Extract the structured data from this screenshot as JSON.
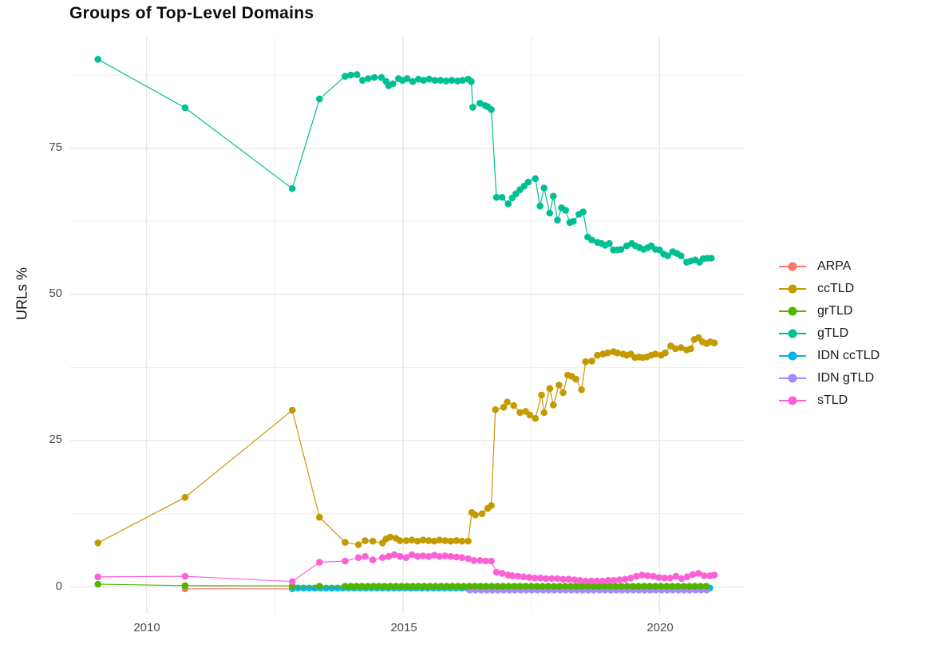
{
  "chart_data": {
    "type": "line",
    "title": "Groups of Top-Level Domains",
    "xlabel": "",
    "ylabel": "URLs %",
    "legend_position": "right",
    "grid": true,
    "xlim": [
      2008.51,
      2021.66
    ],
    "ylim": [
      -4.6,
      94.2
    ],
    "x_axis": {
      "ticks": [
        2010,
        2015,
        2020
      ],
      "tick_labels": [
        "2010",
        "2015",
        "2020"
      ],
      "minor": [
        2012.5,
        2017.5
      ]
    },
    "y_axis": {
      "ticks": [
        0,
        25,
        50,
        75
      ],
      "tick_labels": [
        "0",
        "25",
        "50",
        "75"
      ],
      "minor": [
        12.5,
        37.5,
        62.5,
        87.5
      ]
    },
    "legend": {
      "items": [
        {
          "label": "ARPA",
          "color": "#F8766D"
        },
        {
          "label": "ccTLD",
          "color": "#C49A00"
        },
        {
          "label": "grTLD",
          "color": "#53B400"
        },
        {
          "label": "gTLD",
          "color": "#00BF92"
        },
        {
          "label": "IDN ccTLD",
          "color": "#00B6EB"
        },
        {
          "label": "IDN gTLD",
          "color": "#A58AFF"
        },
        {
          "label": "sTLD",
          "color": "#FB61D7"
        }
      ]
    },
    "series": [
      {
        "id": "arpa",
        "name": "ARPA",
        "color": "#F8766D",
        "render_dy": 2.5,
        "points": [
          [
            2010.75,
            0.0
          ],
          [
            2012.84,
            0.0
          ]
        ]
      },
      {
        "id": "idn-cctld",
        "name": "IDN ccTLD",
        "color": "#00B6EB",
        "render_dy": 1.5,
        "points": [],
        "flat": {
          "from": 2012.84,
          "to": 2021.01,
          "step": 0.11,
          "value": 0.0
        }
      },
      {
        "id": "idn-gtld",
        "name": "IDN gTLD",
        "color": "#A58AFF",
        "render_dy": 4,
        "points": [],
        "flat": {
          "from": 2016.3,
          "to": 2021.01,
          "step": 0.11,
          "value": 0.0
        }
      },
      {
        "id": "grtld",
        "name": "grTLD",
        "color": "#53B400",
        "render_dy": 0,
        "points": [
          [
            2009.05,
            0.45
          ],
          [
            2010.75,
            0.2
          ],
          [
            2012.84,
            0.15
          ],
          [
            2013.37,
            0.1
          ]
        ],
        "flat": {
          "from": 2013.87,
          "to": 2021.01,
          "step": 0.11,
          "value": 0.1
        }
      },
      {
        "id": "cctld",
        "name": "ccTLD",
        "color": "#C49A00",
        "render_dy": 0,
        "points": [
          [
            2009.05,
            7.5
          ],
          [
            2010.75,
            15.3
          ],
          [
            2012.84,
            30.2
          ],
          [
            2013.37,
            11.9
          ],
          [
            2013.87,
            7.6
          ],
          [
            2014.13,
            7.2
          ],
          [
            2014.26,
            7.9
          ],
          [
            2014.41,
            7.8
          ],
          [
            2014.6,
            7.5
          ],
          [
            2014.67,
            8.2
          ],
          [
            2014.75,
            8.5
          ],
          [
            2014.86,
            8.3
          ],
          [
            2014.94,
            7.9
          ],
          [
            2015.06,
            7.9
          ],
          [
            2015.17,
            8.0
          ],
          [
            2015.28,
            7.8
          ],
          [
            2015.39,
            8.0
          ],
          [
            2015.5,
            7.9
          ],
          [
            2015.61,
            7.8
          ],
          [
            2015.71,
            8.0
          ],
          [
            2015.82,
            7.9
          ],
          [
            2015.93,
            7.8
          ],
          [
            2016.04,
            7.9
          ],
          [
            2016.15,
            7.8
          ],
          [
            2016.27,
            7.8
          ],
          [
            2016.34,
            12.7
          ],
          [
            2016.41,
            12.3
          ],
          [
            2016.54,
            12.5
          ],
          [
            2016.65,
            13.4
          ],
          [
            2016.72,
            13.9
          ],
          [
            2016.8,
            30.3
          ],
          [
            2016.96,
            30.7
          ],
          [
            2017.03,
            31.6
          ],
          [
            2017.16,
            31.0
          ],
          [
            2017.28,
            29.8
          ],
          [
            2017.39,
            30.0
          ],
          [
            2017.47,
            29.4
          ],
          [
            2017.58,
            28.8
          ],
          [
            2017.7,
            32.8
          ],
          [
            2017.75,
            29.8
          ],
          [
            2017.86,
            33.9
          ],
          [
            2017.93,
            31.1
          ],
          [
            2018.04,
            34.5
          ],
          [
            2018.12,
            33.2
          ],
          [
            2018.21,
            36.2
          ],
          [
            2018.29,
            36.0
          ],
          [
            2018.37,
            35.5
          ],
          [
            2018.48,
            33.7
          ],
          [
            2018.56,
            38.5
          ],
          [
            2018.68,
            38.6
          ],
          [
            2018.79,
            39.6
          ],
          [
            2018.9,
            39.8
          ],
          [
            2018.99,
            40.0
          ],
          [
            2019.1,
            40.2
          ],
          [
            2019.18,
            40.0
          ],
          [
            2019.29,
            39.8
          ],
          [
            2019.36,
            39.6
          ],
          [
            2019.44,
            39.8
          ],
          [
            2019.52,
            39.2
          ],
          [
            2019.6,
            39.3
          ],
          [
            2019.67,
            39.2
          ],
          [
            2019.75,
            39.3
          ],
          [
            2019.84,
            39.6
          ],
          [
            2019.92,
            39.8
          ],
          [
            2020.03,
            39.6
          ],
          [
            2020.11,
            40.0
          ],
          [
            2020.22,
            41.2
          ],
          [
            2020.31,
            40.7
          ],
          [
            2020.42,
            40.9
          ],
          [
            2020.53,
            40.5
          ],
          [
            2020.61,
            40.7
          ],
          [
            2020.68,
            42.3
          ],
          [
            2020.76,
            42.6
          ],
          [
            2020.84,
            41.9
          ],
          [
            2020.92,
            41.6
          ],
          [
            2020.99,
            41.9
          ],
          [
            2021.07,
            41.7
          ]
        ]
      },
      {
        "id": "gtld",
        "name": "gTLD",
        "color": "#00BF92",
        "render_dy": 0,
        "points": [
          [
            2009.05,
            90.2
          ],
          [
            2010.75,
            81.9
          ],
          [
            2012.84,
            68.1
          ],
          [
            2013.37,
            83.4
          ],
          [
            2013.87,
            87.3
          ],
          [
            2013.98,
            87.5
          ],
          [
            2014.1,
            87.6
          ],
          [
            2014.21,
            86.6
          ],
          [
            2014.32,
            86.9
          ],
          [
            2014.44,
            87.1
          ],
          [
            2014.58,
            87.1
          ],
          [
            2014.67,
            86.4
          ],
          [
            2014.72,
            85.7
          ],
          [
            2014.8,
            86.0
          ],
          [
            2014.91,
            86.9
          ],
          [
            2014.99,
            86.6
          ],
          [
            2015.08,
            86.9
          ],
          [
            2015.19,
            86.4
          ],
          [
            2015.3,
            86.8
          ],
          [
            2015.4,
            86.6
          ],
          [
            2015.51,
            86.8
          ],
          [
            2015.62,
            86.6
          ],
          [
            2015.73,
            86.6
          ],
          [
            2015.84,
            86.5
          ],
          [
            2015.95,
            86.6
          ],
          [
            2016.06,
            86.5
          ],
          [
            2016.16,
            86.6
          ],
          [
            2016.27,
            86.8
          ],
          [
            2016.33,
            86.4
          ],
          [
            2016.36,
            82.0
          ],
          [
            2016.5,
            82.7
          ],
          [
            2016.6,
            82.3
          ],
          [
            2016.65,
            82.1
          ],
          [
            2016.72,
            81.6
          ],
          [
            2016.82,
            66.6
          ],
          [
            2016.93,
            66.6
          ],
          [
            2017.05,
            65.5
          ],
          [
            2017.13,
            66.5
          ],
          [
            2017.2,
            67.2
          ],
          [
            2017.28,
            67.9
          ],
          [
            2017.36,
            68.5
          ],
          [
            2017.44,
            69.2
          ],
          [
            2017.58,
            69.8
          ],
          [
            2017.67,
            65.1
          ],
          [
            2017.75,
            68.2
          ],
          [
            2017.86,
            63.9
          ],
          [
            2017.93,
            66.8
          ],
          [
            2018.01,
            62.7
          ],
          [
            2018.09,
            64.8
          ],
          [
            2018.17,
            64.4
          ],
          [
            2018.25,
            62.3
          ],
          [
            2018.32,
            62.5
          ],
          [
            2018.43,
            63.7
          ],
          [
            2018.51,
            64.1
          ],
          [
            2018.6,
            59.8
          ],
          [
            2018.68,
            59.3
          ],
          [
            2018.79,
            58.9
          ],
          [
            2018.87,
            58.7
          ],
          [
            2018.94,
            58.4
          ],
          [
            2019.02,
            58.7
          ],
          [
            2019.1,
            57.6
          ],
          [
            2019.18,
            57.6
          ],
          [
            2019.25,
            57.7
          ],
          [
            2019.36,
            58.3
          ],
          [
            2019.46,
            58.7
          ],
          [
            2019.53,
            58.3
          ],
          [
            2019.61,
            58.0
          ],
          [
            2019.69,
            57.7
          ],
          [
            2019.77,
            58.0
          ],
          [
            2019.84,
            58.3
          ],
          [
            2019.92,
            57.7
          ],
          [
            2020.0,
            57.6
          ],
          [
            2020.08,
            56.9
          ],
          [
            2020.16,
            56.6
          ],
          [
            2020.26,
            57.3
          ],
          [
            2020.34,
            57.0
          ],
          [
            2020.42,
            56.6
          ],
          [
            2020.53,
            55.5
          ],
          [
            2020.61,
            55.7
          ],
          [
            2020.7,
            55.9
          ],
          [
            2020.78,
            55.5
          ],
          [
            2020.85,
            56.1
          ],
          [
            2020.93,
            56.2
          ],
          [
            2021.01,
            56.2
          ]
        ]
      },
      {
        "id": "stld",
        "name": "sTLD",
        "color": "#FB61D7",
        "render_dy": 0,
        "points": [
          [
            2009.05,
            1.7
          ],
          [
            2010.75,
            1.8
          ],
          [
            2012.84,
            0.9
          ],
          [
            2013.37,
            4.2
          ],
          [
            2013.87,
            4.4
          ],
          [
            2014.13,
            5.0
          ],
          [
            2014.26,
            5.2
          ],
          [
            2014.41,
            4.6
          ],
          [
            2014.6,
            5.0
          ],
          [
            2014.72,
            5.2
          ],
          [
            2014.83,
            5.5
          ],
          [
            2014.94,
            5.2
          ],
          [
            2015.06,
            5.0
          ],
          [
            2015.17,
            5.5
          ],
          [
            2015.28,
            5.2
          ],
          [
            2015.39,
            5.3
          ],
          [
            2015.5,
            5.2
          ],
          [
            2015.61,
            5.4
          ],
          [
            2015.71,
            5.2
          ],
          [
            2015.82,
            5.3
          ],
          [
            2015.93,
            5.2
          ],
          [
            2016.04,
            5.1
          ],
          [
            2016.15,
            5.0
          ],
          [
            2016.27,
            4.8
          ],
          [
            2016.38,
            4.5
          ],
          [
            2016.5,
            4.5
          ],
          [
            2016.61,
            4.4
          ],
          [
            2016.72,
            4.4
          ],
          [
            2016.82,
            2.5
          ],
          [
            2016.93,
            2.3
          ],
          [
            2017.05,
            2.0
          ],
          [
            2017.13,
            1.9
          ],
          [
            2017.24,
            1.8
          ],
          [
            2017.35,
            1.7
          ],
          [
            2017.46,
            1.6
          ],
          [
            2017.57,
            1.5
          ],
          [
            2017.68,
            1.5
          ],
          [
            2017.79,
            1.4
          ],
          [
            2017.9,
            1.4
          ],
          [
            2018.01,
            1.4
          ],
          [
            2018.12,
            1.3
          ],
          [
            2018.23,
            1.3
          ],
          [
            2018.34,
            1.2
          ],
          [
            2018.45,
            1.1
          ],
          [
            2018.56,
            1.0
          ],
          [
            2018.67,
            1.0
          ],
          [
            2018.78,
            1.0
          ],
          [
            2018.89,
            1.0
          ],
          [
            2019.0,
            1.1
          ],
          [
            2019.11,
            1.1
          ],
          [
            2019.22,
            1.2
          ],
          [
            2019.33,
            1.3
          ],
          [
            2019.44,
            1.5
          ],
          [
            2019.55,
            1.8
          ],
          [
            2019.66,
            2.0
          ],
          [
            2019.77,
            1.9
          ],
          [
            2019.88,
            1.8
          ],
          [
            2019.99,
            1.6
          ],
          [
            2020.1,
            1.5
          ],
          [
            2020.21,
            1.5
          ],
          [
            2020.32,
            1.8
          ],
          [
            2020.43,
            1.4
          ],
          [
            2020.54,
            1.7
          ],
          [
            2020.65,
            2.1
          ],
          [
            2020.76,
            2.3
          ],
          [
            2020.87,
            1.9
          ],
          [
            2020.98,
            1.9
          ],
          [
            2021.07,
            2.0
          ]
        ]
      }
    ]
  }
}
